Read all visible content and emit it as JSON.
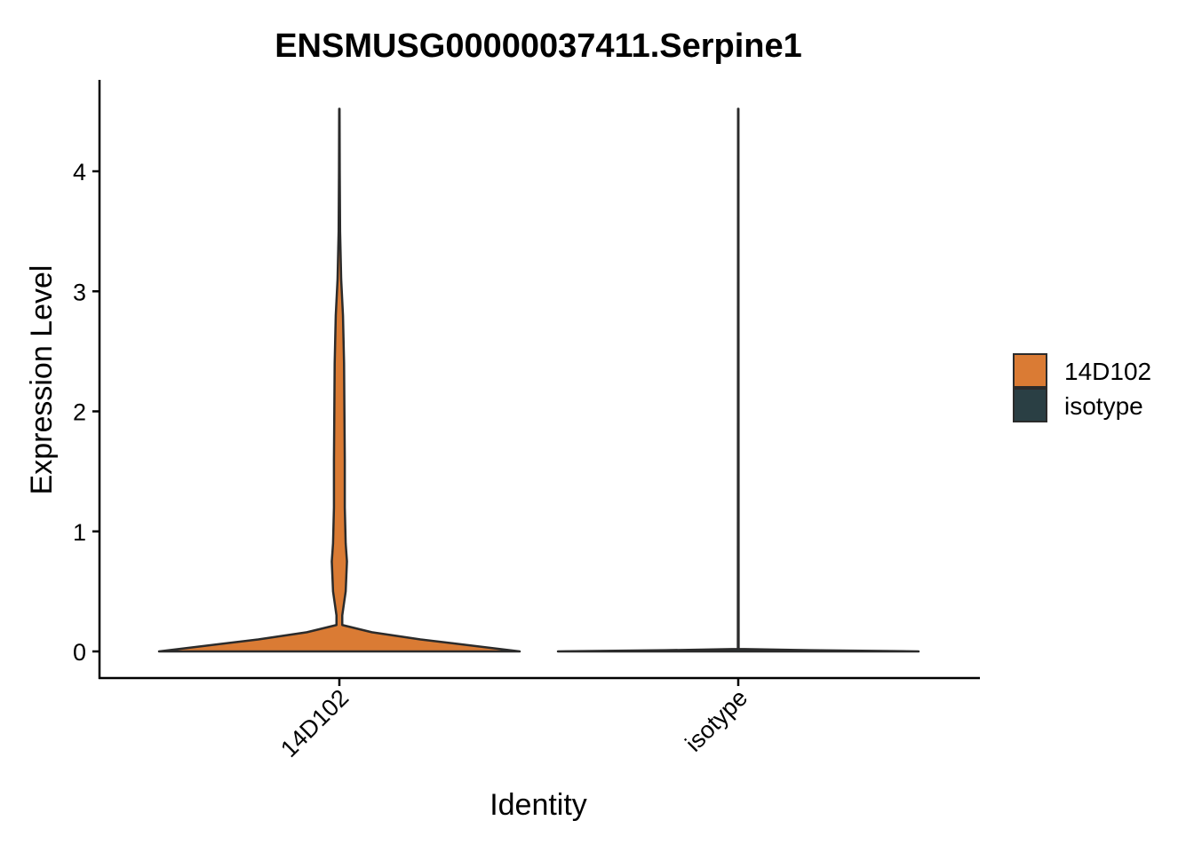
{
  "chart_data": {
    "type": "violin",
    "title": "ENSMUSG00000037411.Serpine1",
    "xlabel": "Identity",
    "ylabel": "Expression Level",
    "categories": [
      "14D102",
      "isotype"
    ],
    "ylim": [
      -0.22,
      4.55
    ],
    "yticks": [
      0,
      1,
      2,
      3,
      4
    ],
    "y_tick_labels": [
      "0",
      "1",
      "2",
      "3",
      "4"
    ],
    "x_tick_rotation_deg": -45,
    "grid": false,
    "legend": {
      "placement": "right",
      "entries": [
        {
          "label": "14D102",
          "color": "#DA7B34"
        },
        {
          "label": "isotype",
          "color": "#2A3F44"
        }
      ]
    },
    "series": [
      {
        "category": "14D102",
        "color": "#DA7B34",
        "y_min": 0,
        "y_max": 4.52,
        "density_profile": [
          {
            "y": 0.0,
            "width": 1.0
          },
          {
            "y": 0.1,
            "width": 0.45
          },
          {
            "y": 0.16,
            "width": 0.18
          },
          {
            "y": 0.22,
            "width": 0.016
          },
          {
            "y": 0.3,
            "width": 0.016
          },
          {
            "y": 0.5,
            "width": 0.035
          },
          {
            "y": 0.75,
            "width": 0.042
          },
          {
            "y": 0.9,
            "width": 0.035
          },
          {
            "y": 1.2,
            "width": 0.03
          },
          {
            "y": 1.6,
            "width": 0.03
          },
          {
            "y": 2.0,
            "width": 0.028
          },
          {
            "y": 2.4,
            "width": 0.026
          },
          {
            "y": 2.8,
            "width": 0.02
          },
          {
            "y": 3.1,
            "width": 0.01
          },
          {
            "y": 3.5,
            "width": 0.004
          },
          {
            "y": 4.0,
            "width": 0.002
          },
          {
            "y": 4.52,
            "width": 0.001
          }
        ]
      },
      {
        "category": "isotype",
        "color": "#2A3F44",
        "y_min": 0,
        "y_max": 4.52,
        "density_profile": [
          {
            "y": 0.0,
            "width": 1.0
          },
          {
            "y": 0.01,
            "width": 0.4
          },
          {
            "y": 0.02,
            "width": 0.002
          },
          {
            "y": 4.52,
            "width": 0.001
          }
        ]
      }
    ]
  }
}
